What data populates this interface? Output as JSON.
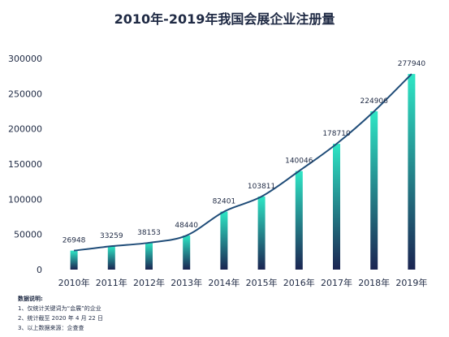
{
  "chart_data": {
    "type": "bar",
    "title": "2010年-2019年我国会展企业注册量",
    "categories": [
      "2010年",
      "2011年",
      "2012年",
      "2013年",
      "2014年",
      "2015年",
      "2016年",
      "2017年",
      "2018年",
      "2019年"
    ],
    "values": [
      26948,
      33259,
      38153,
      48440,
      82401,
      103811,
      140046,
      178710,
      224906,
      277940
    ],
    "ylim": [
      0,
      300000
    ],
    "yticks": [
      0,
      50000,
      100000,
      150000,
      200000,
      250000,
      300000
    ],
    "xlabel": "",
    "ylabel": "",
    "grid": false,
    "trend_line": true,
    "colors": {
      "bar_top": "#2ee6c5",
      "bar_bottom": "#1b2552",
      "line": "#1f4c78",
      "text": "#1f2a44"
    }
  },
  "notes": {
    "title": "数据说明:",
    "items": [
      "1、仅统计关键词为“会展”的企业",
      "2、统计截至 2020 年 4 月 22 日",
      "3、以上数据来源：企查查"
    ]
  }
}
